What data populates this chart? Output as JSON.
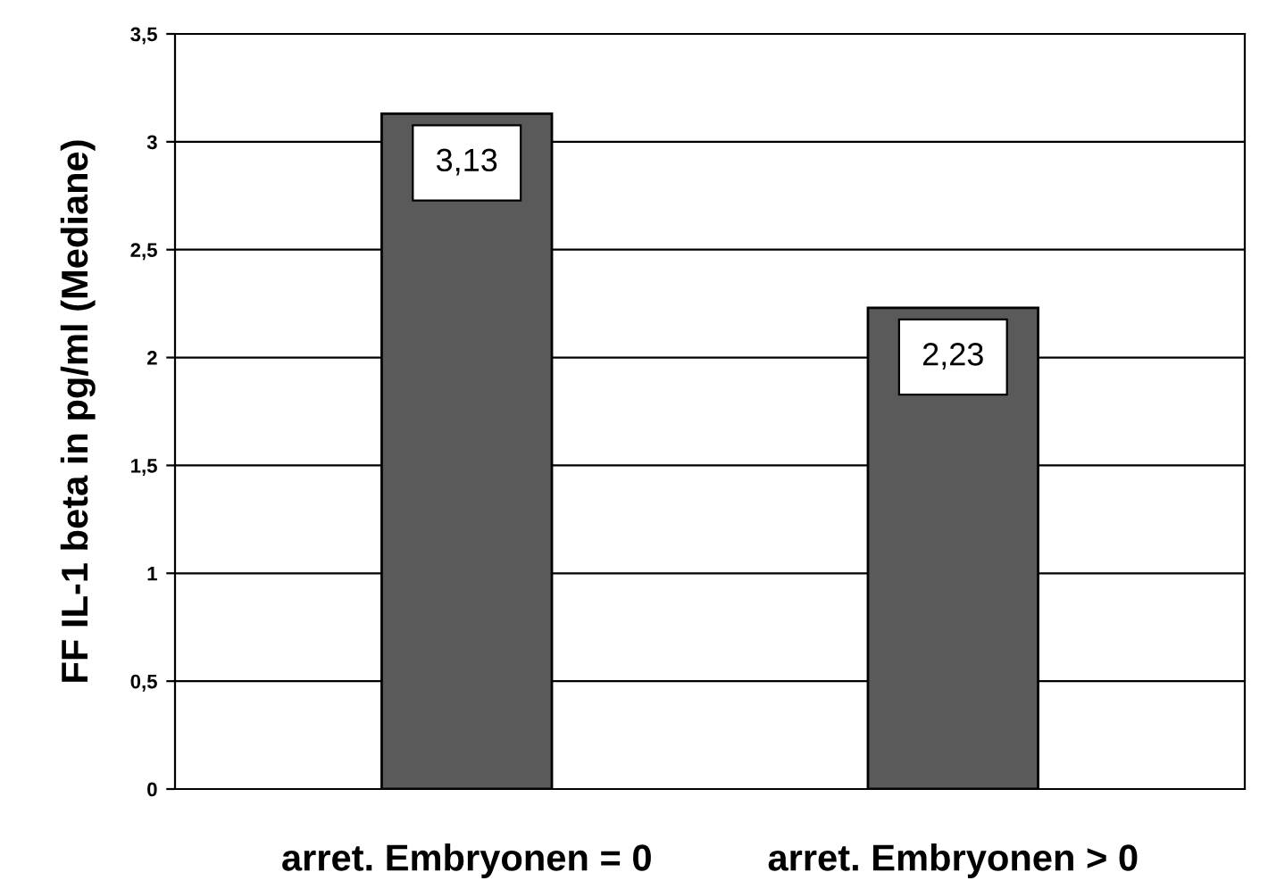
{
  "chart_data": {
    "type": "bar",
    "ylabel": "FF IL-1 beta in pg/ml (Mediane)",
    "categories": [
      "arret. Embryonen = 0",
      "arret. Embryonen > 0"
    ],
    "values": [
      3.13,
      2.23
    ],
    "color": "#5a5a5a",
    "value_labels": [
      "3,13",
      "2,23"
    ],
    "ylim": [
      0,
      3.5
    ],
    "yticks": [
      0,
      {
        "value": 0.5,
        "label": "0,5"
      },
      1,
      {
        "value": 1.5,
        "label": "1,5"
      },
      2,
      {
        "value": 2.5,
        "label": "2,5"
      },
      3,
      {
        "value": 3.5,
        "label": "3,5"
      }
    ],
    "grid": "y",
    "legend": false
  }
}
